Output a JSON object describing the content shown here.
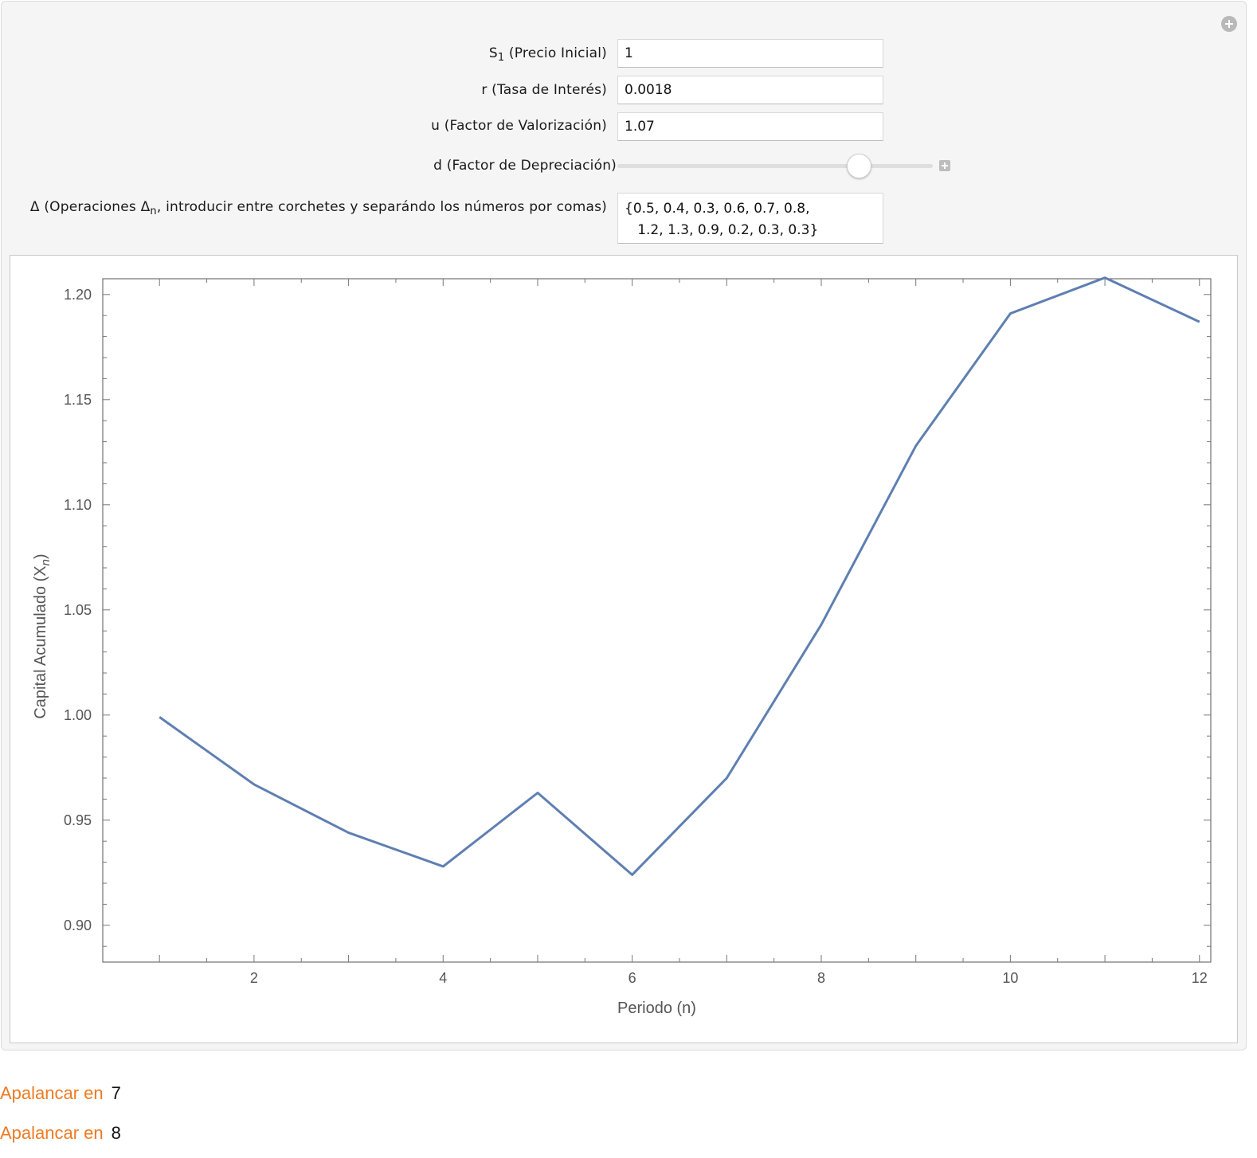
{
  "controls": {
    "s1": {
      "label_prefix": "S",
      "label_sub": "1",
      "label_suffix": " (Precio Inicial)",
      "value": "1"
    },
    "r": {
      "label": "r (Tasa de Interés)",
      "value": "0.0018"
    },
    "u": {
      "label": "u (Factor de Valorización)",
      "value": "1.07"
    },
    "d": {
      "label": "d (Factor de Depreciación)",
      "slider_fraction": 0.79
    },
    "delta": {
      "label_prefix": "Δ (Operaciones Δ",
      "label_sub": "n",
      "label_suffix": ", introducir entre corchetes y separándo los números por comas)",
      "value": "{0.5, 0.4, 0.3, 0.6, 0.7, 0.8,\n   1.2, 1.3, 0.9, 0.2, 0.3, 0.3}"
    }
  },
  "chart_data": {
    "type": "line",
    "xlabel": "Periodo (n)",
    "ylabel_prefix": "Capital Acumulado (X",
    "ylabel_sub": "n",
    "ylabel_suffix": ")",
    "x": [
      1,
      2,
      3,
      4,
      5,
      6,
      7,
      8,
      9,
      10,
      11,
      12
    ],
    "values": [
      0.999,
      0.967,
      0.944,
      0.928,
      0.963,
      0.924,
      0.97,
      1.043,
      1.128,
      1.191,
      1.208,
      1.187
    ],
    "xlim": [
      0.4,
      12.12
    ],
    "ylim": [
      0.8825,
      1.2075
    ],
    "x_ticks": [
      "2",
      "4",
      "6",
      "8",
      "10",
      "12"
    ],
    "y_ticks": [
      "0.90",
      "0.95",
      "1.00",
      "1.05",
      "1.10",
      "1.15",
      "1.20"
    ],
    "line_color": "#5e7fb1",
    "grid": false
  },
  "outputs": [
    {
      "keyword": "Apalancar en",
      "value": "7"
    },
    {
      "keyword": "Apalancar en",
      "value": "8"
    }
  ]
}
